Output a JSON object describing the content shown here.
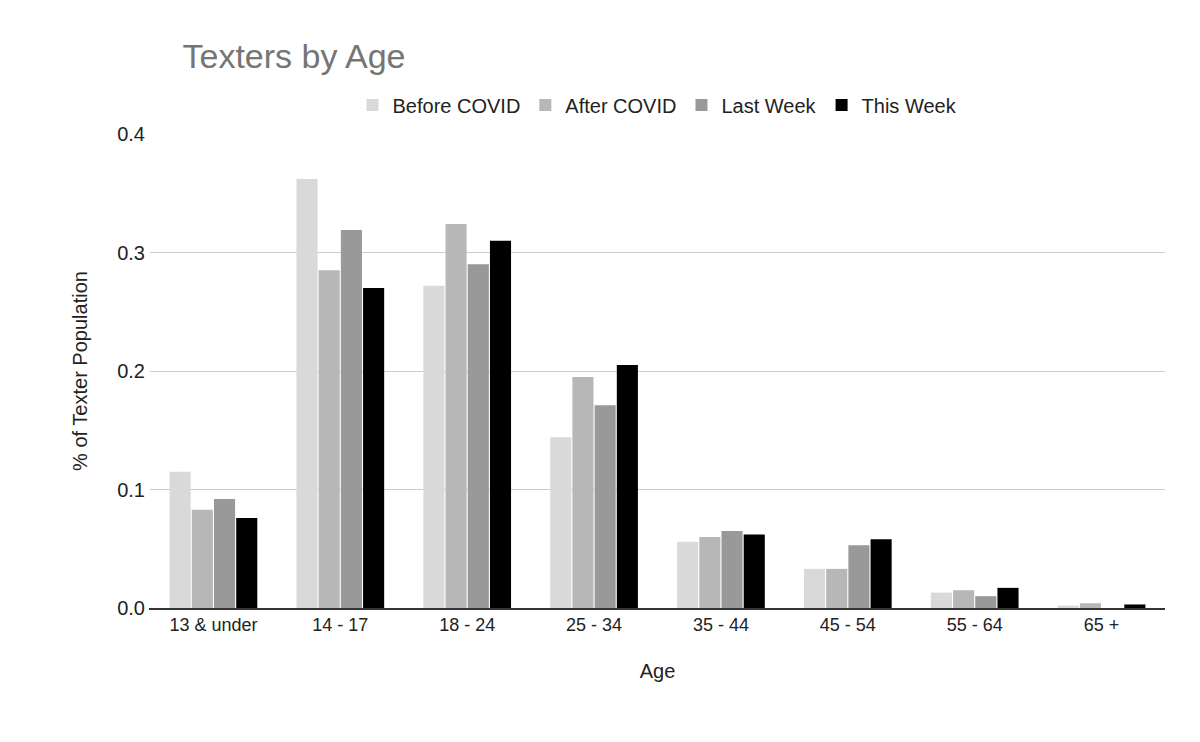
{
  "chart_data": {
    "type": "bar",
    "title": "Texters by Age",
    "x_label": "Age",
    "y_label": "% of Texter Population",
    "categories": [
      "13 & under",
      "14 - 17",
      "18 - 24",
      "25 - 34",
      "35 - 44",
      "45 - 54",
      "55 - 64",
      "65 +"
    ],
    "series": [
      {
        "name": "Before COVID",
        "color": "#d9d9d9",
        "values": [
          0.115,
          0.362,
          0.272,
          0.144,
          0.056,
          0.033,
          0.013,
          0.002
        ]
      },
      {
        "name": "After COVID",
        "color": "#b7b7b7",
        "values": [
          0.083,
          0.285,
          0.324,
          0.195,
          0.06,
          0.033,
          0.015,
          0.004
        ]
      },
      {
        "name": "Last Week",
        "color": "#999999",
        "values": [
          0.092,
          0.319,
          0.29,
          0.171,
          0.065,
          0.053,
          0.01,
          0.0
        ]
      },
      {
        "name": "This Week",
        "color": "#000000",
        "values": [
          0.076,
          0.27,
          0.31,
          0.205,
          0.062,
          0.058,
          0.017,
          0.003
        ]
      }
    ],
    "ylim": [
      0,
      0.4
    ],
    "yticks": [
      {
        "value": 0,
        "label": "0.0"
      },
      0.1,
      0.2,
      0.3,
      0.4
    ],
    "grid": true,
    "legend": "top"
  }
}
